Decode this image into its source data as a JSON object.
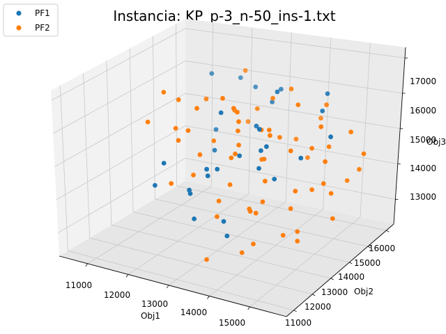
{
  "chart_data": {
    "type": "scatter",
    "projection": "3d",
    "title": "Instancia: KP_p-3_n-50_ins-1.txt",
    "xlabel": "Obj1",
    "ylabel": "Obj2",
    "zlabel": "Obj3",
    "x_ticks": [
      "11000",
      "12000",
      "13000",
      "14000",
      "15000"
    ],
    "y_ticks": [
      "11000",
      "12000",
      "13000",
      "14000",
      "15000",
      "16000"
    ],
    "z_ticks": [
      "13000",
      "14000",
      "15000",
      "16000",
      "17000"
    ],
    "xlim": [
      10300,
      15900
    ],
    "ylim": [
      10600,
      16400
    ],
    "zlim": [
      12300,
      17300
    ],
    "grid": true,
    "legend_position": "top-left",
    "series": [
      {
        "name": "PF1",
        "color": "#1f77b4",
        "points": [
          [
            11500,
            15500,
            16200
          ],
          [
            12400,
            15900,
            15800
          ],
          [
            11900,
            16100,
            15900
          ],
          [
            12700,
            13800,
            16000
          ],
          [
            13000,
            15600,
            15600
          ],
          [
            14000,
            13200,
            16100
          ],
          [
            15000,
            14700,
            15400
          ],
          [
            12300,
            11900,
            15200
          ],
          [
            13600,
            13000,
            15300
          ],
          [
            14500,
            12600,
            16000
          ],
          [
            12900,
            12800,
            14600
          ],
          [
            14300,
            15800,
            16000
          ],
          [
            13600,
            12200,
            13700
          ],
          [
            14900,
            11500,
            16000
          ],
          [
            11900,
            15000,
            14800
          ],
          [
            12200,
            14400,
            14500
          ],
          [
            13000,
            16000,
            15800
          ],
          [
            14000,
            13900,
            14300
          ],
          [
            13400,
            15100,
            16200
          ],
          [
            12000,
            12000,
            14400
          ],
          [
            12600,
            13300,
            14500
          ],
          [
            13800,
            11600,
            15600
          ],
          [
            12500,
            12700,
            14000
          ],
          [
            13300,
            11200,
            15000
          ],
          [
            15200,
            12900,
            15700
          ],
          [
            13100,
            14700,
            15300
          ],
          [
            14400,
            15400,
            15700
          ],
          [
            12800,
            12300,
            13500
          ],
          [
            13600,
            14000,
            15000
          ],
          [
            14200,
            11200,
            13900
          ]
        ]
      },
      {
        "name": "PF2",
        "color": "#ff7f0e",
        "points": [
          [
            11600,
            13200,
            16600
          ],
          [
            11800,
            13500,
            16300
          ],
          [
            12100,
            14200,
            16100
          ],
          [
            12300,
            15600,
            16400
          ],
          [
            12600,
            12900,
            16500
          ],
          [
            12800,
            13700,
            16500
          ],
          [
            13000,
            14000,
            16000
          ],
          [
            13300,
            13300,
            16500
          ],
          [
            13400,
            14900,
            16100
          ],
          [
            13700,
            15200,
            16300
          ],
          [
            13900,
            12400,
            16400
          ],
          [
            14100,
            14800,
            16100
          ],
          [
            14300,
            13100,
            16200
          ],
          [
            14500,
            15400,
            15900
          ],
          [
            14600,
            12300,
            15800
          ],
          [
            14800,
            14600,
            15700
          ],
          [
            15000,
            13800,
            15500
          ],
          [
            15200,
            15300,
            15300
          ],
          [
            15400,
            12000,
            14700
          ],
          [
            15500,
            13800,
            14300
          ],
          [
            11700,
            12300,
            16100
          ],
          [
            12000,
            13000,
            15700
          ],
          [
            12400,
            12400,
            15700
          ],
          [
            12600,
            14600,
            15700
          ],
          [
            12900,
            15100,
            15600
          ],
          [
            13100,
            12100,
            15600
          ],
          [
            13200,
            13700,
            15200
          ],
          [
            13500,
            12800,
            15300
          ],
          [
            13700,
            14700,
            15100
          ],
          [
            14000,
            11800,
            15100
          ],
          [
            14200,
            14300,
            15000
          ],
          [
            14400,
            12700,
            14900
          ],
          [
            14600,
            15400,
            14700
          ],
          [
            14700,
            11400,
            14700
          ],
          [
            14900,
            13200,
            14500
          ],
          [
            15100,
            14200,
            14300
          ],
          [
            15300,
            15600,
            14100
          ],
          [
            15400,
            11600,
            14100
          ],
          [
            12400,
            14000,
            15000
          ],
          [
            12700,
            12500,
            14700
          ],
          [
            13000,
            13900,
            14800
          ],
          [
            13300,
            14600,
            14400
          ],
          [
            13600,
            12000,
            14400
          ],
          [
            13900,
            15700,
            14100
          ],
          [
            14200,
            12300,
            14200
          ],
          [
            14500,
            14800,
            13700
          ],
          [
            14800,
            11300,
            13800
          ],
          [
            15100,
            12900,
            13500
          ],
          [
            13200,
            13700,
            15900
          ],
          [
            14100,
            13500,
            15800
          ],
          [
            12800,
            11300,
            15000
          ],
          [
            13500,
            14200,
            15500
          ],
          [
            14900,
            15800,
            13600
          ],
          [
            14300,
            11700,
            13200
          ],
          [
            15400,
            14100,
            13400
          ],
          [
            13800,
            15300,
            14800
          ],
          [
            12500,
            15400,
            15000
          ],
          [
            15600,
            13300,
            15500
          ],
          [
            14000,
            13000,
            13700
          ],
          [
            13300,
            11900,
            12600
          ],
          [
            15600,
            15200,
            14800
          ],
          [
            14100,
            15900,
            15200
          ],
          [
            13700,
            11700,
            14100
          ],
          [
            15000,
            13100,
            13100
          ],
          [
            12200,
            13200,
            15600
          ],
          [
            14700,
            12000,
            14700
          ]
        ]
      }
    ]
  }
}
